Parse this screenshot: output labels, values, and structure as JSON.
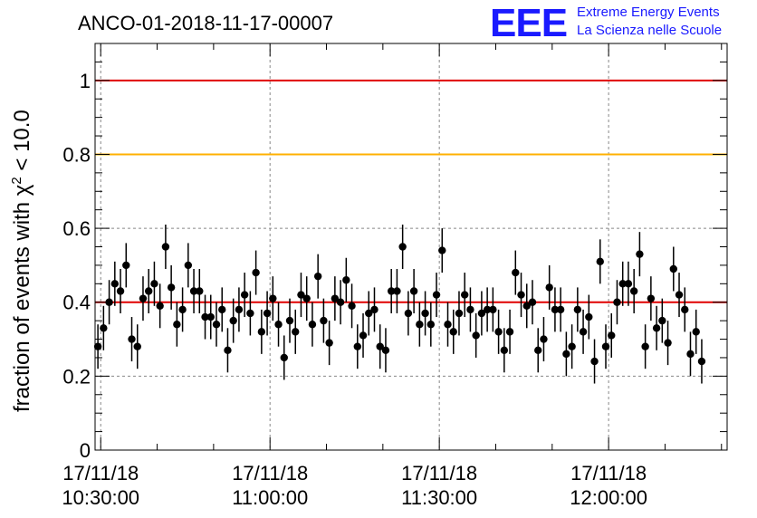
{
  "chart_data": {
    "type": "scatter",
    "title": "ANCO-01-2018-11-17-00007",
    "ylabel_prefix": "fraction of events with ",
    "ylabel_symbol": "χ",
    "ylabel_sup": "2",
    "ylabel_suffix": " < 10.0",
    "xlabel": "",
    "ylim": [
      0,
      1.1
    ],
    "yticks": [
      0,
      0.2,
      0.4,
      0.6,
      0.8,
      1
    ],
    "ytick_labels": [
      "0",
      "0.2",
      "0.4",
      "0.6",
      "0.8",
      "1"
    ],
    "xlim_minutes": [
      -1,
      111
    ],
    "xtick_minutes": [
      0,
      30,
      60,
      90
    ],
    "xtick_labels": [
      {
        "date": "17/11/18",
        "time": "10:30:00"
      },
      {
        "date": "17/11/18",
        "time": "11:00:00"
      },
      {
        "date": "17/11/18",
        "time": "11:30:00"
      },
      {
        "date": "17/11/18",
        "time": "12:00:00"
      }
    ],
    "grid": true,
    "reference_lines": [
      {
        "name": "upper-red-line",
        "y": 1.0,
        "color": "#e00000"
      },
      {
        "name": "orange-line",
        "y": 0.8,
        "color": "#ffb000"
      },
      {
        "name": "lower-red-line",
        "y": 0.4,
        "color": "#e00000"
      }
    ],
    "series": [
      {
        "name": "fraction",
        "marker_color": "#000000",
        "error": 0.06,
        "x_minutes": [
          -0.5,
          0.5,
          1.5,
          2.5,
          3.5,
          4.5,
          5.5,
          6.5,
          7.5,
          8.5,
          9.5,
          10.5,
          11.5,
          12.5,
          13.5,
          14.5,
          15.5,
          16.5,
          17.5,
          18.5,
          19.5,
          20.5,
          21.5,
          22.5,
          23.5,
          24.5,
          25.5,
          26.5,
          27.5,
          28.5,
          29.5,
          30.5,
          31.5,
          32.5,
          33.5,
          34.5,
          35.5,
          36.5,
          37.5,
          38.5,
          39.5,
          40.5,
          41.5,
          42.5,
          43.5,
          44.5,
          45.5,
          46.5,
          47.5,
          48.5,
          49.5,
          50.5,
          51.5,
          52.5,
          53.5,
          54.5,
          55.5,
          56.5,
          57.5,
          58.5,
          59.5,
          60.5,
          61.5,
          62.5,
          63.5,
          64.5,
          65.5,
          66.5,
          67.5,
          68.5,
          69.5,
          70.5,
          71.5,
          72.5,
          73.5,
          74.5,
          75.5,
          76.5,
          77.5,
          78.5,
          79.5,
          80.5,
          81.5,
          82.5,
          83.5,
          84.5,
          85.5,
          86.5,
          87.5,
          88.5,
          89.5,
          90.5,
          91.5,
          92.5,
          93.5,
          94.5,
          95.5,
          96.5,
          97.5,
          98.5,
          99.5,
          100.5,
          101.5,
          102.5,
          103.5,
          104.5,
          105.5,
          106.5
        ],
        "values": [
          0.28,
          0.33,
          0.4,
          0.45,
          0.43,
          0.5,
          0.3,
          0.28,
          0.41,
          0.43,
          0.45,
          0.39,
          0.55,
          0.44,
          0.34,
          0.38,
          0.5,
          0.43,
          0.43,
          0.36,
          0.36,
          0.34,
          0.38,
          0.27,
          0.35,
          0.38,
          0.42,
          0.37,
          0.48,
          0.32,
          0.37,
          0.41,
          0.34,
          0.25,
          0.35,
          0.32,
          0.42,
          0.41,
          0.34,
          0.47,
          0.35,
          0.29,
          0.41,
          0.4,
          0.46,
          0.39,
          0.28,
          0.31,
          0.37,
          0.38,
          0.28,
          0.27,
          0.43,
          0.43,
          0.55,
          0.37,
          0.43,
          0.34,
          0.37,
          0.34,
          0.42,
          0.54,
          0.34,
          0.32,
          0.37,
          0.42,
          0.38,
          0.31,
          0.37,
          0.38,
          0.38,
          0.32,
          0.27,
          0.32,
          0.48,
          0.42,
          0.39,
          0.4,
          0.27,
          0.3,
          0.44,
          0.38,
          0.38,
          0.26,
          0.28,
          0.38,
          0.32,
          0.36,
          0.24,
          0.51,
          0.28,
          0.31,
          0.4,
          0.45,
          0.45,
          0.43,
          0.53,
          0.28,
          0.41,
          0.33,
          0.35,
          0.29,
          0.49,
          0.42,
          0.38,
          0.26,
          0.32,
          0.24
        ]
      }
    ]
  },
  "logo": {
    "mark": "EEE",
    "line1": "Extreme Energy Events",
    "line2": "La Scienza nelle Scuole"
  }
}
